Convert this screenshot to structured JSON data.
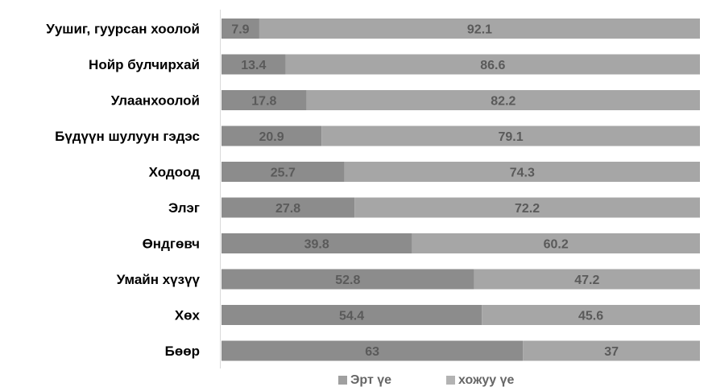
{
  "chart_data": {
    "type": "bar",
    "orientation": "horizontal",
    "stacked": true,
    "categories": [
      "Уушиг, гуурсан хоолой",
      "Нойр булчирхай",
      "Улаанхоолой",
      "Бүдүүн шулуун гэдэс",
      "Ходоод",
      "Элэг",
      "Өндгөвч",
      "Умайн хүзүү",
      "Хөх",
      "Бөөр"
    ],
    "series": [
      {
        "name": "Эрт үе",
        "values": [
          7.9,
          13.4,
          17.8,
          20.9,
          25.7,
          27.8,
          39.8,
          52.8,
          54.4,
          63
        ],
        "labels": [
          "7.9",
          "13.4",
          "17.8",
          "20.9",
          "25.7",
          "27.8",
          "39.8",
          "52.8",
          "54.4",
          "63"
        ]
      },
      {
        "name": "хожуу үе",
        "values": [
          92.1,
          86.6,
          82.2,
          79.1,
          74.3,
          72.2,
          60.2,
          47.2,
          45.6,
          37
        ],
        "labels": [
          "92.1",
          "86.6",
          "82.2",
          "79.1",
          "74.3",
          "72.2",
          "60.2",
          "47.2",
          "45.6",
          "37"
        ]
      }
    ],
    "xlim": [
      0,
      100
    ],
    "grid": false,
    "legend_position": "bottom-center",
    "colors": [
      "#8c8c8c",
      "#a6a6a6"
    ],
    "legend_colors": [
      "#a0a0a0",
      "#b3b3b3"
    ]
  }
}
